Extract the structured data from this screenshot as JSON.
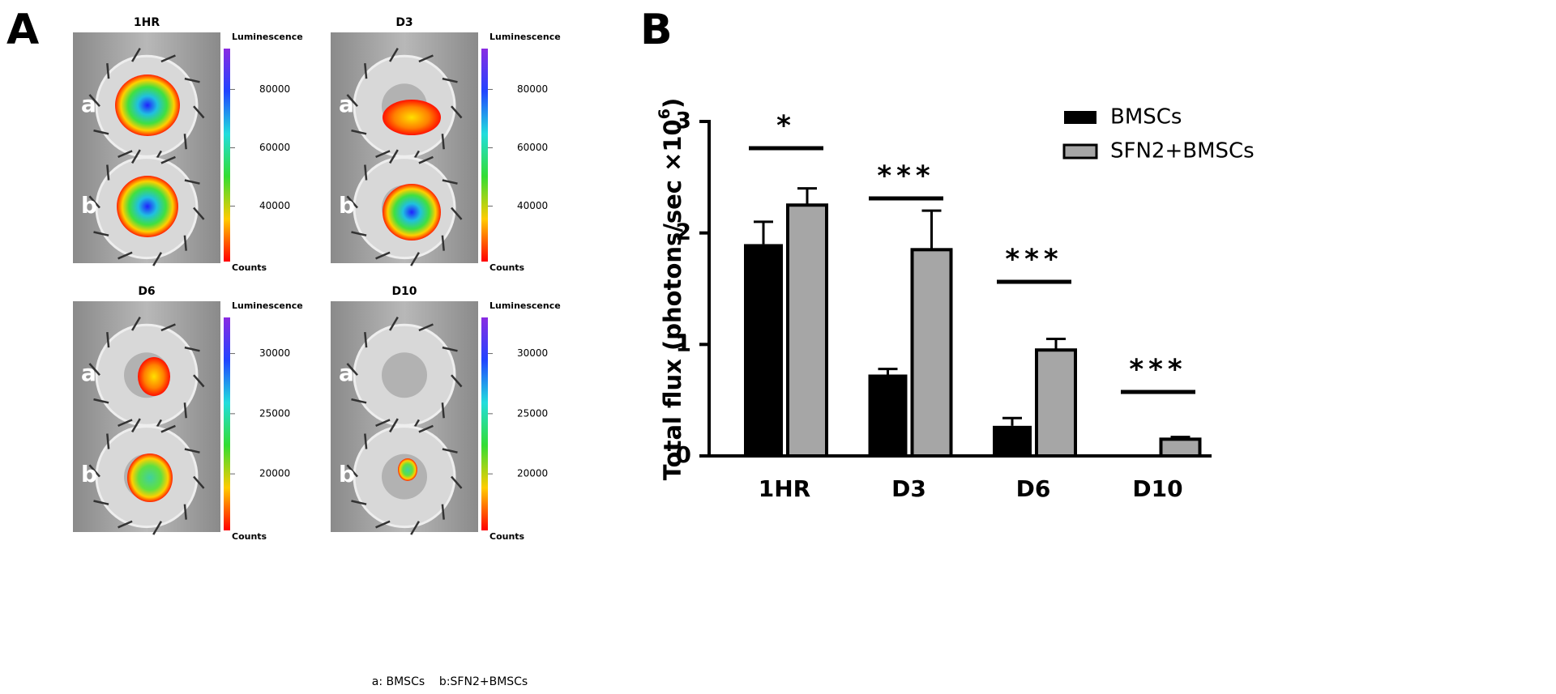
{
  "panel_a": {
    "label": "A",
    "caption": "a: BMSCs    b:SFN2+BMSCs",
    "images": [
      {
        "title": "1HR",
        "colorbar_title": "Luminescence",
        "colorbar_unit": "Counts",
        "a": "a",
        "b": "b",
        "colorbar_range": [
          21000,
          94000
        ],
        "colorbar_ticks": [
          40000,
          60000,
          80000
        ]
      },
      {
        "title": "D3",
        "colorbar_title": "Luminescence",
        "colorbar_unit": "Counts",
        "a": "a",
        "b": "b",
        "colorbar_range": [
          21000,
          94000
        ],
        "colorbar_ticks": [
          40000,
          60000,
          80000
        ]
      },
      {
        "title": "D6",
        "colorbar_title": "Luminescence",
        "colorbar_unit": "Counts",
        "a": "a",
        "b": "b",
        "colorbar_range": [
          15300,
          33000
        ],
        "colorbar_ticks": [
          20000,
          25000,
          30000
        ]
      },
      {
        "title": "D10",
        "colorbar_title": "Luminescence",
        "colorbar_unit": "Counts",
        "a": "a",
        "b": "b",
        "colorbar_range": [
          15300,
          33000
        ],
        "colorbar_ticks": [
          20000,
          25000,
          30000
        ]
      }
    ]
  },
  "chart_data": {
    "type": "bar",
    "panel_label": "B",
    "y_label": "Total flux (photons/sec ×10",
    "y_label_superscript": "6",
    "y_label_suffix": ")",
    "categories": [
      "1HR",
      "D3",
      "D6",
      "D10"
    ],
    "series": [
      {
        "name": "BMSCs",
        "color": "#000000",
        "values": [
          1.9,
          0.73,
          0.27,
          0
        ],
        "errors": [
          0.2,
          0.05,
          0.07,
          0
        ]
      },
      {
        "name": "SFN2+BMSCs",
        "color": "#a6a6a6",
        "values": [
          2.25,
          1.85,
          0.95,
          0.15
        ],
        "errors": [
          0.15,
          0.35,
          0.1,
          0.02
        ]
      }
    ],
    "ylim": [
      0,
      3
    ],
    "yticks": [
      0,
      1,
      2,
      3
    ],
    "significance": [
      "*",
      "***",
      "***",
      "***"
    ],
    "legend": "top-right"
  }
}
